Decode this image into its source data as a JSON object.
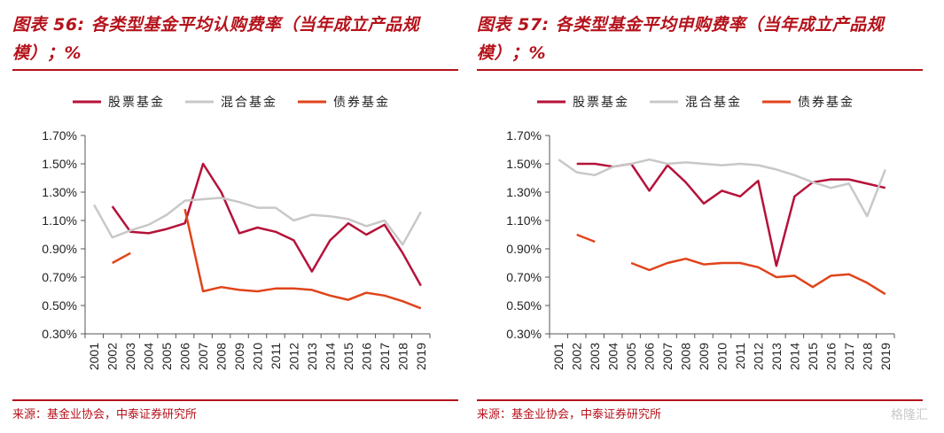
{
  "charts": [
    {
      "title": "图表 56: 各类型基金平均认购费率（当年成立产品规模）；%",
      "source": "来源：基金业协会，中泰证券研究所"
    },
    {
      "title": "图表 57: 各类型基金平均申购费率（当年成立产品规模）；%",
      "source": "来源：基金业协会，中泰证券研究所"
    }
  ],
  "watermark": "格隆汇",
  "colors": {
    "stock": "#b5123a",
    "mixed": "#c8c8c8",
    "bond": "#e0441b",
    "accent": "#b5121b"
  },
  "chart_data": [
    {
      "type": "line",
      "title": "图表 56: 各类型基金平均认购费率（当年成立产品规模）；%",
      "categories": [
        "2001",
        "2002",
        "2003",
        "2004",
        "2005",
        "2006",
        "2007",
        "2008",
        "2009",
        "2010",
        "2011",
        "2012",
        "2013",
        "2014",
        "2015",
        "2016",
        "2017",
        "2018",
        "2019"
      ],
      "ytick_labels": [
        "0.30%",
        "0.50%",
        "0.70%",
        "0.90%",
        "1.10%",
        "1.30%",
        "1.50%",
        "1.70%"
      ],
      "ylim": [
        0.3,
        1.7
      ],
      "series": [
        {
          "name": "股票基金",
          "color": "#b5123a",
          "values": [
            null,
            1.2,
            1.02,
            1.01,
            1.04,
            1.08,
            1.5,
            1.3,
            1.01,
            1.05,
            1.02,
            0.96,
            0.74,
            0.96,
            1.08,
            1.0,
            1.07,
            0.87,
            0.64
          ]
        },
        {
          "name": "混合基金",
          "color": "#c8c8c8",
          "values": [
            1.21,
            0.98,
            1.03,
            1.07,
            1.14,
            1.24,
            1.25,
            1.26,
            1.23,
            1.19,
            1.19,
            1.1,
            1.14,
            1.13,
            1.11,
            1.06,
            1.1,
            0.93,
            1.16
          ]
        },
        {
          "name": "债券基金",
          "color": "#e0441b",
          "values": [
            null,
            0.8,
            0.87,
            null,
            null,
            1.18,
            0.6,
            0.63,
            0.61,
            0.6,
            0.62,
            0.62,
            0.61,
            0.57,
            0.54,
            0.59,
            0.57,
            0.53,
            0.48
          ]
        }
      ]
    },
    {
      "type": "line",
      "title": "图表 57: 各类型基金平均申购费率（当年成立产品规模）；%",
      "categories": [
        "2001",
        "2002",
        "2003",
        "2004",
        "2005",
        "2006",
        "2007",
        "2008",
        "2009",
        "2010",
        "2011",
        "2012",
        "2013",
        "2014",
        "2015",
        "2016",
        "2017",
        "2018",
        "2019"
      ],
      "ytick_labels": [
        "0.30%",
        "0.50%",
        "0.70%",
        "0.90%",
        "1.10%",
        "1.30%",
        "1.50%",
        "1.70%"
      ],
      "ylim": [
        0.3,
        1.7
      ],
      "series": [
        {
          "name": "股票基金",
          "color": "#b5123a",
          "values": [
            null,
            1.5,
            1.5,
            1.48,
            1.5,
            1.31,
            1.49,
            1.37,
            1.22,
            1.31,
            1.27,
            1.38,
            0.78,
            1.27,
            1.37,
            1.39,
            1.39,
            1.36,
            1.33
          ]
        },
        {
          "name": "混合基金",
          "color": "#c8c8c8",
          "values": [
            1.53,
            1.44,
            1.42,
            1.48,
            1.5,
            1.53,
            1.5,
            1.51,
            1.5,
            1.49,
            1.5,
            1.49,
            1.46,
            1.42,
            1.37,
            1.33,
            1.36,
            1.13,
            1.46
          ]
        },
        {
          "name": "债券基金",
          "color": "#e0441b",
          "values": [
            null,
            1.0,
            0.95,
            null,
            0.8,
            0.75,
            0.8,
            0.83,
            0.79,
            0.8,
            0.8,
            0.77,
            0.7,
            0.71,
            0.63,
            0.71,
            0.72,
            0.66,
            0.58
          ]
        }
      ]
    }
  ]
}
